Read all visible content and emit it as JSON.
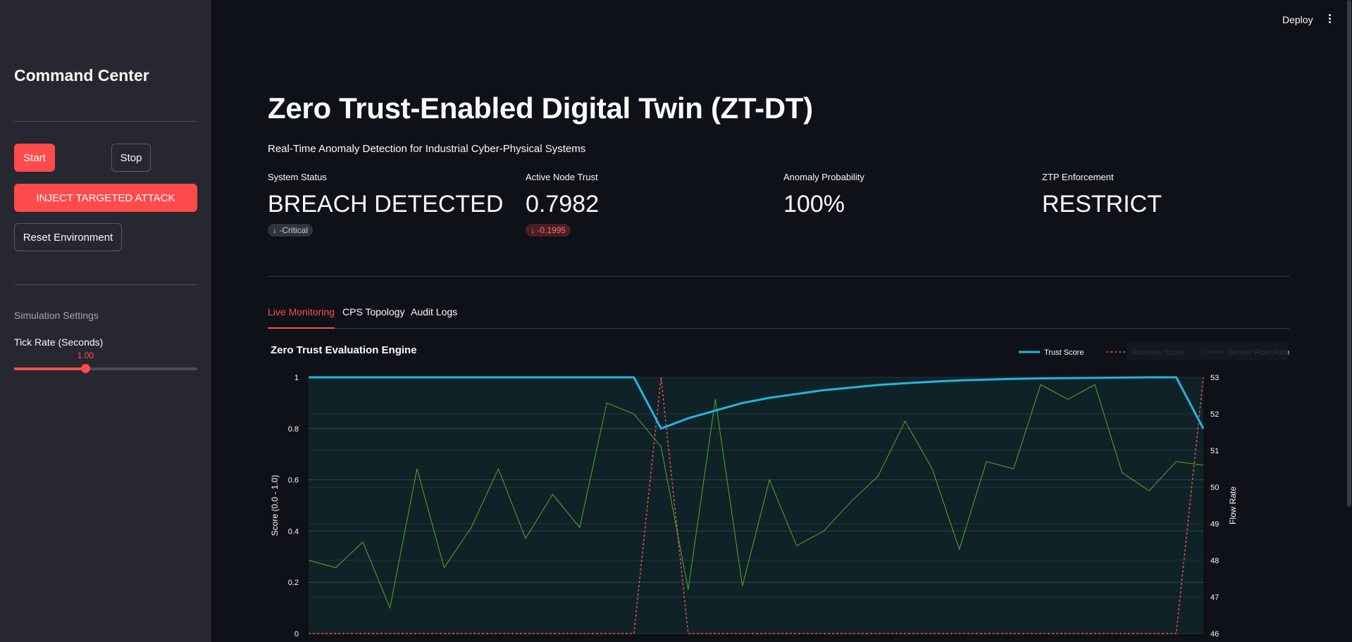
{
  "header": {
    "deploy_label": "Deploy"
  },
  "sidebar": {
    "title": "Command Center",
    "start_label": "Start",
    "stop_label": "Stop",
    "inject_label": "INJECT TARGETED ATTACK",
    "reset_label": "Reset Environment",
    "settings_heading": "Simulation Settings",
    "tick_rate_label": "Tick Rate (Seconds)",
    "tick_rate_value": "1.00",
    "tick_rate_fraction": 0.39
  },
  "main": {
    "title": "Zero Trust-Enabled Digital Twin (ZT-DT)",
    "subtitle": "Real-Time Anomaly Detection for Industrial Cyber-Physical Systems",
    "metrics": [
      {
        "label": "System Status",
        "value": "BREACH DETECTED",
        "delta": "-Critical"
      },
      {
        "label": "Active Node Trust",
        "value": "0.7982",
        "delta": "-0.1995"
      },
      {
        "label": "Anomaly Probability",
        "value": "100%",
        "delta": ""
      },
      {
        "label": "ZTP Enforcement",
        "value": "RESTRICT",
        "delta": ""
      }
    ],
    "tabs": [
      {
        "label": "Live Monitoring"
      },
      {
        "label": "CPS Topology"
      },
      {
        "label": "Audit Logs"
      }
    ]
  },
  "colors": {
    "accent": "#ff4b4b",
    "trust": "#1fb6e0",
    "anomaly": "#ff4b4b",
    "flow": "#4caf21"
  },
  "chart_data": {
    "type": "line",
    "title": "Zero Trust Evaluation Engine",
    "ylabel": "Score (0.0 - 1.0)",
    "y2label": "Flow Rate",
    "ylim": [
      0,
      1
    ],
    "y2lim": [
      46,
      53
    ],
    "yticks": [
      "0",
      "0.2",
      "0.4",
      "0.6",
      "0.8",
      "1"
    ],
    "y2ticks": [
      "46",
      "47",
      "48",
      "49",
      "50",
      "51",
      "52",
      "53"
    ],
    "legend_position": "top-right",
    "series": [
      {
        "name": "Trust Score",
        "axis": "y",
        "values": [
          1,
          1,
          1,
          1,
          1,
          1,
          1,
          1,
          1,
          1,
          1,
          1,
          1,
          0.8,
          0.84,
          0.87,
          0.9,
          0.92,
          0.935,
          0.95,
          0.96,
          0.97,
          0.977,
          0.983,
          0.988,
          0.991,
          0.994,
          0.996,
          0.997,
          0.998,
          0.999,
          1,
          1,
          0.8
        ]
      },
      {
        "name": "Anomaly Score",
        "axis": "y",
        "values": [
          0,
          0,
          0,
          0,
          0,
          0,
          0,
          0,
          0,
          0,
          0,
          0,
          0,
          1,
          0,
          0,
          0,
          0,
          0,
          0,
          0,
          0,
          0,
          0,
          0,
          0,
          0,
          0,
          0,
          0,
          0,
          0,
          0,
          1
        ]
      },
      {
        "name": "Sensor Flow Rate",
        "axis": "y2",
        "values": [
          48,
          47.8,
          48.5,
          46.7,
          50.5,
          47.8,
          48.9,
          50.5,
          48.6,
          49.8,
          48.9,
          52.3,
          52,
          51.1,
          47.2,
          52.4,
          47.3,
          50.2,
          48.4,
          48.8,
          49.6,
          50.3,
          51.8,
          50.5,
          48.3,
          50.7,
          50.5,
          52.8,
          52.4,
          52.8,
          50.4,
          49.9,
          50.7,
          50.6
        ]
      }
    ]
  }
}
